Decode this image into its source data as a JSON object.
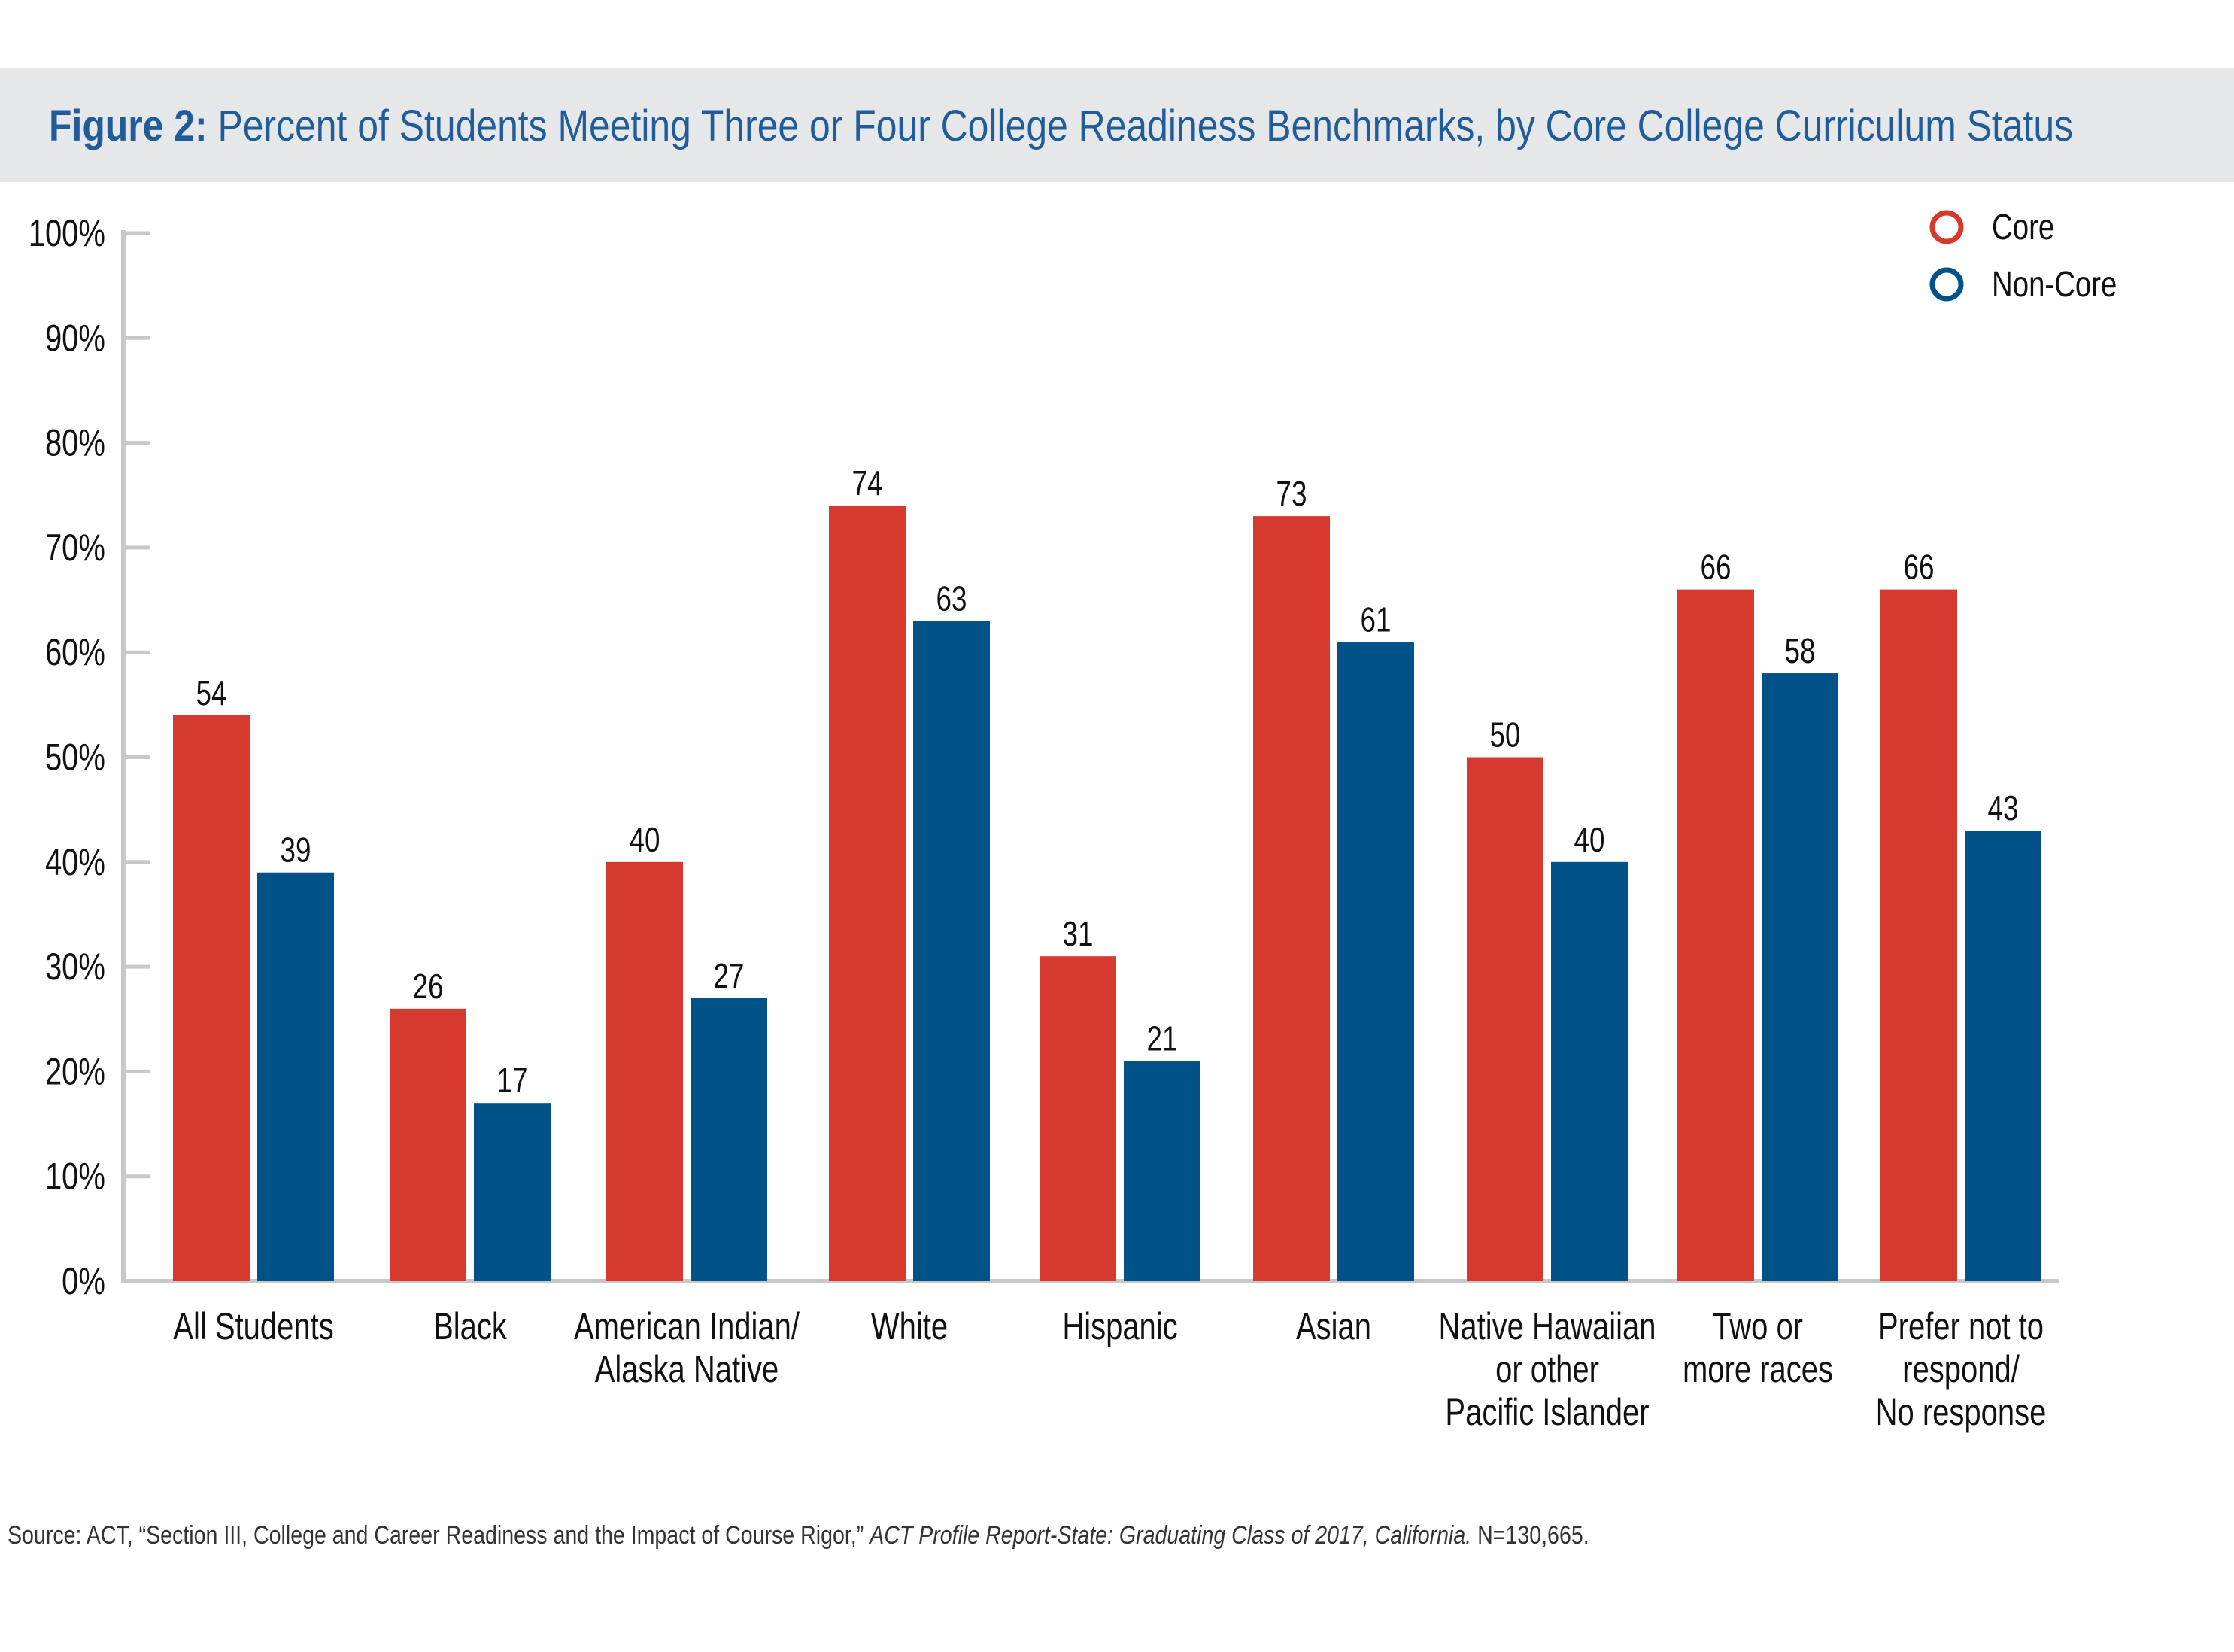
{
  "figure": {
    "label": "Figure 2:",
    "title": "Percent of Students Meeting Three or Four College Readiness Benchmarks, by Core College Curriculum Status"
  },
  "source": {
    "prefix": "Source: ACT, “Section III, College and Career Readiness and the Impact of Course Rigor,”",
    "report": "ACT Profile Report-State: Graduating Class of 2017, California.",
    "suffix": "N=130,665."
  },
  "colors": {
    "core": "#d63a2f",
    "noncore": "#005289",
    "axis": "#c8c8c8",
    "title": "#1f5c99"
  },
  "chart_data": {
    "type": "bar",
    "title": "Percent of Students Meeting Three or Four College Readiness Benchmarks, by Core College Curriculum Status",
    "categories": [
      [
        "All Students"
      ],
      [
        "Black"
      ],
      [
        "American Indian/",
        "Alaska Native"
      ],
      [
        "White"
      ],
      [
        "Hispanic"
      ],
      [
        "Asian"
      ],
      [
        "Native Hawaiian",
        "or other",
        "Pacific Islander"
      ],
      [
        "Two or",
        "more races"
      ],
      [
        "Prefer not to",
        "respond/",
        "No response"
      ]
    ],
    "series": [
      {
        "name": "Core",
        "values": [
          54,
          26,
          40,
          74,
          31,
          73,
          50,
          66,
          66
        ]
      },
      {
        "name": "Non-Core",
        "values": [
          39,
          17,
          27,
          63,
          21,
          61,
          40,
          58,
          43
        ]
      }
    ],
    "ylim": [
      0,
      100
    ],
    "yticks": [
      "0%",
      "10%",
      "20%",
      "30%",
      "40%",
      "50%",
      "60%",
      "70%",
      "80%",
      "90%",
      "100%"
    ],
    "legend_position": "top-right",
    "grid": false,
    "data_labels": true
  }
}
